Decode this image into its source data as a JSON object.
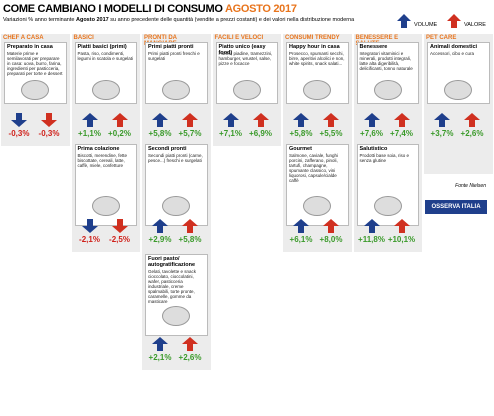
{
  "header": {
    "title": "COME CAMBIANO I MODELLI DI CONSUMO",
    "title_highlight": "AGOSTO 2017",
    "subtitle_before": "Variazioni % anno terminante",
    "subtitle_bold": "Agosto 2017",
    "subtitle_after": "su anno precedente delle quantità (vendite a prezzi costanti) e dei valori nella distribuzione moderna",
    "legend": [
      "VOLUME",
      "VALORE"
    ]
  },
  "columns": [
    {
      "title": "CHEF A CASA",
      "items": [
        {
          "name": "Preparato in casa",
          "description": "Materie prime e semilavorati per preparare in casa: uova, burro, farina, ingredienti per pasticceria, preparati per torte e dessert",
          "volume": "-0,3%",
          "value": "-0,3%"
        }
      ]
    },
    {
      "title": "BASICI",
      "items": [
        {
          "name": "Piatti basici (primi)",
          "description": "Pasta, riso, condimenti, legumi in scatola e surgelati",
          "volume": "+1,1%",
          "value": "+0,2%"
        },
        {
          "name": "Prima colazione",
          "description": "Biscotti, merendine, fette biscottate, cereali, latte, caffè, miele, confetture",
          "volume": "-2,1%",
          "value": "-2,5%"
        }
      ]
    },
    {
      "title": "PRONTI DA MANGIARE",
      "items": [
        {
          "name": "Primi piatti pronti",
          "description": "Primi piatti pronti freschi e surgelati",
          "volume": "+5,8%",
          "value": "+5,7%"
        },
        {
          "name": "Secondi pronti",
          "description": "Secondi piatti pronti (carne, pesce...) freschi e surgelati",
          "volume": "+2,9%",
          "value": "+5,8%"
        },
        {
          "name": "Fuori pasto/ autogratificazione",
          "description": "Gelati, tavolette e snack cioccolato, cioccolatini, wafer, pasticceria industriale, creme spalmabili, torte pronte, caramelle, gomme da masticare",
          "volume": "+2,1%",
          "value": "+2,6%"
        }
      ]
    },
    {
      "title": "FACILI E VELOCI",
      "items": [
        {
          "name": "Piatto unico (easy food)",
          "description": "Panini, piadine, tramezzini, hamburger, wrustel, salse, pizze e focacce",
          "volume": "+7,1%",
          "value": "+6,9%"
        }
      ]
    },
    {
      "title": "CONSUMI TRENDY",
      "items": [
        {
          "name": "Happy hour in casa",
          "description": "Prosecco, spumanti secchi, birre, aperitivi alcolici e non, white spirits, snack salati...",
          "volume": "+5,8%",
          "value": "+5,5%"
        },
        {
          "name": "Gourmet",
          "description": "Salmone, caviale, funghi porcini, zafferano, pinoli, tartufi, champagne, spumante classico, vini liquorosi, capsule/cialde caffè",
          "volume": "+6,1%",
          "value": "+8,0%"
        }
      ]
    },
    {
      "title": "BENESSERE E SALUTE",
      "items": [
        {
          "name": "Benessere",
          "description": "Integratori vitaminici e minerali, prodotti integrali, latte alta digeribilità, delicificanti, tonno naturale",
          "volume": "+7,6%",
          "value": "+7,4%"
        },
        {
          "name": "Salutistico",
          "description": "Prodotti base soia, riso e senza glutine",
          "volume": "+11,8%",
          "value": "+10,1%"
        }
      ]
    },
    {
      "title": "PET CARE",
      "items": [
        {
          "name": "Animali domestici",
          "description": "Accessori, cibo e cura",
          "volume": "+3,7%",
          "value": "+2,6%"
        }
      ]
    }
  ],
  "footer": {
    "source": "Fonte Nielsen",
    "logo": "OSSERVA ITALIA"
  }
}
